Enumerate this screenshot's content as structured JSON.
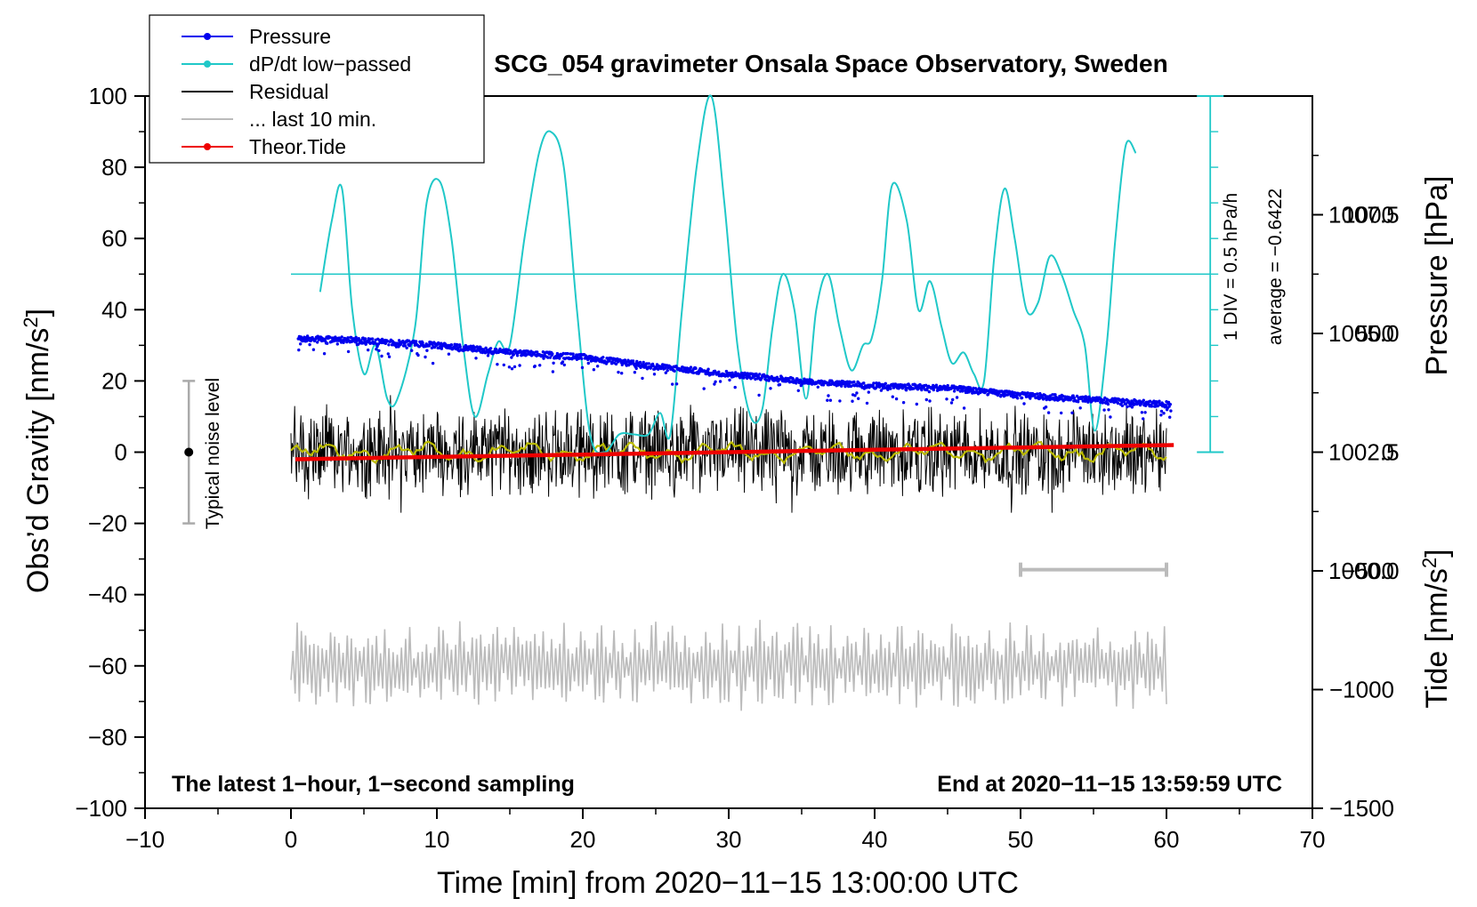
{
  "chart_data": {
    "type": "line",
    "title": "SCG_054 gravimeter Onsala Space Observatory, Sweden",
    "xlabel": "Time [min] from 2020−11−15 13:00:00 UTC",
    "ylabel_left_main": "Obs’d Gravity [nm/s",
    "ylabel_left_sup": "2",
    "ylabel_left_tail": "]",
    "ylabel_right_pressure": "Pressure [hPa]",
    "ylabel_right_tide_main": "Tide [nm/s",
    "ylabel_right_tide_sup": "2",
    "ylabel_right_tide_tail": "]",
    "xlim": [
      -10,
      70
    ],
    "ylim": [
      -100,
      100
    ],
    "pressure_lim": [
      995.0,
      1010.0
    ],
    "tide_lim": [
      -1500,
      1500
    ],
    "x_ticks": [
      "−10",
      "0",
      "10",
      "20",
      "30",
      "40",
      "50",
      "60",
      "70"
    ],
    "x_tick_values": [
      -10,
      0,
      10,
      20,
      30,
      40,
      50,
      60,
      70
    ],
    "y_ticks": [
      "−100",
      "−80",
      "−60",
      "−40",
      "−20",
      "0",
      "20",
      "40",
      "60",
      "80",
      "100"
    ],
    "y_tick_values": [
      -100,
      -80,
      -60,
      -40,
      -20,
      0,
      20,
      40,
      60,
      80,
      100
    ],
    "pressure_ticks": [
      "1000.0",
      "1002.5",
      "1005.0",
      "1007.5"
    ],
    "pressure_tick_values": [
      1000.0,
      1002.5,
      1005.0,
      1007.5
    ],
    "tide_ticks": [
      "−1500",
      "−1000",
      "−500",
      "0",
      "500",
      "1000"
    ],
    "tide_tick_values": [
      -1500,
      -1000,
      -500,
      0,
      500,
      1000
    ],
    "legend": {
      "position": "top-left",
      "entries": [
        {
          "label": "Pressure",
          "color": "#0000ee",
          "marker": "dot"
        },
        {
          "label": "dP/dt low−passed",
          "color": "#20c8c8",
          "marker": "dot"
        },
        {
          "label": "Residual",
          "color": "#000000",
          "marker": "none"
        },
        {
          "label": "... last 10 min.",
          "color": "#bbbbbb",
          "marker": "none"
        },
        {
          "label": "Theor.Tide",
          "color": "#ee0000",
          "marker": "dot"
        }
      ]
    },
    "annotations": {
      "noise_label": "Typical noise level",
      "noise_range": [
        -20,
        20
      ],
      "noise_x": -7,
      "div_label": "1 DIV = 0.5 hPa/h",
      "average_label": "average = −0.6422",
      "bottom_left": "The latest 1−hour, 1−second sampling",
      "bottom_right": "End at 2020−11−15 13:59:59 UTC",
      "scale_bar_x": [
        50,
        60
      ],
      "scale_bar_y": -33
    },
    "series": [
      {
        "name": "Pressure",
        "axis": "pressure",
        "color": "#0000ee",
        "x": [
          0.5,
          5,
          10,
          15,
          20,
          25,
          30,
          35,
          40,
          45,
          50,
          55,
          60.3
        ],
        "values": [
          1004.9,
          1004.85,
          1004.75,
          1004.6,
          1004.5,
          1004.3,
          1004.15,
          1004.0,
          1003.9,
          1003.85,
          1003.7,
          1003.6,
          1003.5
        ]
      },
      {
        "name": "dP/dt low−passed",
        "axis": "gravity",
        "color": "#20c8c8",
        "x": [
          2.0,
          2.8,
          3.5,
          4.2,
          5.0,
          5.8,
          6.6,
          7.3,
          8.5,
          9.3,
          10.2,
          11.0,
          11.8,
          12.6,
          13.5,
          14.2,
          15.0,
          16.0,
          17.0,
          17.8,
          18.7,
          19.6,
          20.5,
          21.5,
          22.5,
          23.5,
          24.5,
          25.3,
          26.0,
          26.8,
          27.8,
          28.8,
          29.7,
          30.6,
          31.5,
          32.3,
          33.0,
          33.7,
          34.5,
          35.3,
          36.0,
          36.8,
          37.6,
          38.4,
          39.2,
          39.8,
          40.5,
          41.2,
          42.2,
          43.0,
          43.8,
          44.6,
          45.3,
          46.1,
          46.8,
          47.5,
          48.2,
          48.9,
          49.6,
          50.4,
          51.2,
          52.0,
          52.8,
          53.6,
          54.4,
          55.1,
          55.9,
          56.5,
          57.2,
          57.9
        ],
        "values": [
          45,
          65,
          74,
          40,
          22,
          30,
          15,
          15,
          35,
          70,
          76,
          60,
          30,
          10,
          22,
          31,
          30,
          60,
          84,
          90,
          80,
          40,
          5,
          0,
          5,
          5,
          5,
          11,
          5,
          40,
          80,
          100,
          70,
          30,
          10,
          12,
          35,
          50,
          40,
          15,
          40,
          50,
          35,
          23,
          30,
          32,
          48,
          75,
          65,
          40,
          48,
          35,
          25,
          28,
          22,
          20,
          55,
          74,
          60,
          40,
          42,
          55,
          50,
          40,
          30,
          6,
          30,
          60,
          86,
          84
        ]
      },
      {
        "name": "Residual",
        "axis": "gravity",
        "color": "#000000",
        "x_range": [
          0,
          60
        ],
        "envelope": [
          -15,
          15
        ],
        "mean": 0
      },
      {
        "name": "Residual smoothed",
        "axis": "gravity",
        "color": "#bbbb00",
        "x_range": [
          0,
          60
        ],
        "envelope": [
          -3,
          4
        ]
      },
      {
        "name": "... last 10 min.",
        "axis": "gravity",
        "color": "#bbbbbb",
        "x_range": [
          0,
          60
        ],
        "center": -60,
        "envelope": [
          -77,
          -47
        ]
      },
      {
        "name": "Theor.Tide",
        "axis": "tide",
        "color": "#ee0000",
        "x": [
          0.3,
          10,
          20,
          30,
          40,
          50,
          60.5
        ],
        "values": [
          -30,
          -20,
          -10,
          0,
          10,
          20,
          30
        ]
      }
    ]
  }
}
